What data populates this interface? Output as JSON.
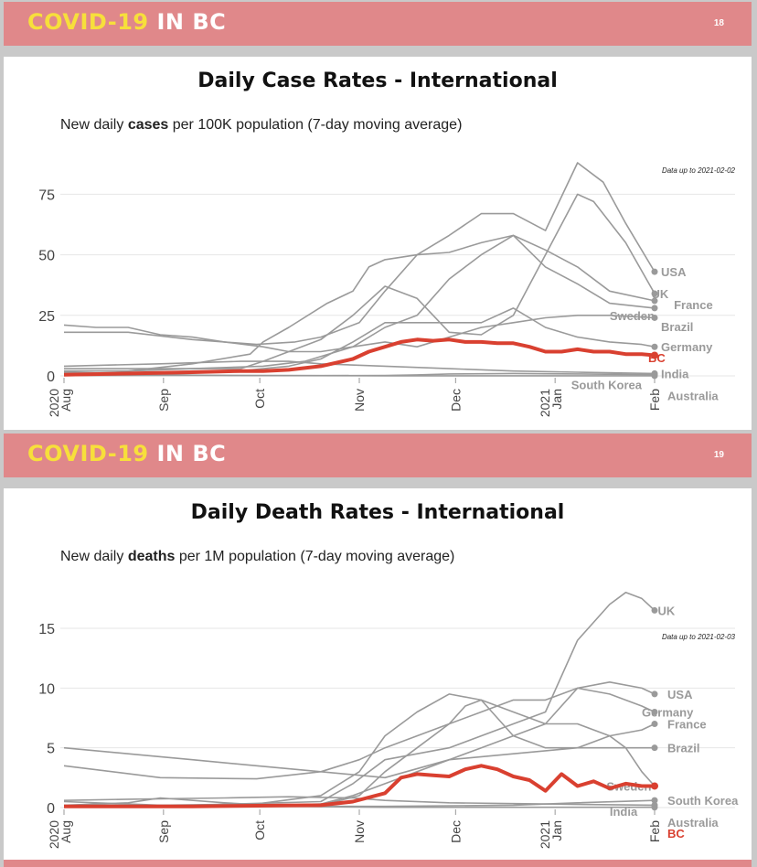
{
  "slides": [
    {
      "banner": {
        "brand_highlight": "COVID-19",
        "brand_rest": "IN BC",
        "page": "18"
      },
      "title": "Daily Case Rates - International",
      "subtitle_pre": "New daily ",
      "subtitle_bold": "cases",
      "subtitle_post": " per 100K population (7-day  moving average)",
      "note": "Data up to 2021-02-02"
    },
    {
      "banner": {
        "brand_highlight": "COVID-19",
        "brand_rest": "IN BC",
        "page": "19"
      },
      "title": "Daily Death Rates - International",
      "subtitle_pre": "New daily ",
      "subtitle_bold": "deaths",
      "subtitle_post": " per 1M population (7-day  moving average)",
      "note": "Data up to 2021-02-03"
    }
  ],
  "colors": {
    "banner": "#e0888a",
    "brand_highlight": "#f7df3b",
    "grey_series": "#9a9a9a",
    "bc": "#d94030"
  },
  "chart_data": [
    {
      "type": "line",
      "x_labels": [
        {
          "x": 0,
          "label": "2020 Aug"
        },
        {
          "x": 31,
          "label": "Sep"
        },
        {
          "x": 61,
          "label": "Oct"
        },
        {
          "x": 92,
          "label": "Nov"
        },
        {
          "x": 122,
          "label": "Dec"
        },
        {
          "x": 153,
          "label": "2021 Jan"
        },
        {
          "x": 184,
          "label": "Feb"
        }
      ],
      "xlim": [
        0,
        184
      ],
      "ylim": [
        0,
        88
      ],
      "yticks": [
        0,
        25,
        50,
        75
      ],
      "series": [
        {
          "name": "USA",
          "x": [
            0,
            20,
            40,
            60,
            72,
            80,
            92,
            100,
            110,
            120,
            130,
            140,
            150,
            160,
            168,
            175,
            184
          ],
          "y": [
            18,
            18,
            15,
            13,
            14,
            16,
            22,
            35,
            50,
            58,
            67,
            67,
            60,
            88,
            80,
            63,
            43
          ],
          "label_x": 186
        },
        {
          "name": "UK",
          "x": [
            0,
            20,
            40,
            55,
            62,
            70,
            80,
            90,
            100,
            110,
            120,
            130,
            140,
            150,
            160,
            165,
            175,
            184
          ],
          "y": [
            2,
            2,
            3,
            3,
            6,
            10,
            15,
            25,
            37,
            32,
            18,
            17,
            25,
            50,
            75,
            72,
            55,
            34
          ],
          "label_x": 183
        },
        {
          "name": "France",
          "x": [
            0,
            20,
            40,
            58,
            62,
            70,
            82,
            90,
            95,
            100,
            110,
            120,
            130,
            140,
            150,
            160,
            170,
            184
          ],
          "y": [
            2,
            2,
            5,
            9,
            14,
            20,
            30,
            35,
            45,
            48,
            50,
            51,
            55,
            58,
            52,
            45,
            35,
            31
          ],
          "label_x": 190
        },
        {
          "name": "Sweden",
          "x": [
            0,
            20,
            40,
            62,
            75,
            90,
            100,
            110,
            120,
            130,
            140,
            150,
            160,
            170,
            184
          ],
          "y": [
            3,
            3,
            3,
            4,
            6,
            12,
            20,
            25,
            40,
            50,
            58,
            45,
            38,
            30,
            28
          ],
          "label_x": 170
        },
        {
          "name": "Brazil",
          "x": [
            0,
            10,
            20,
            30,
            40,
            50,
            62,
            70,
            80,
            90,
            100,
            110,
            120,
            130,
            140,
            150,
            160,
            170,
            184
          ],
          "y": [
            21,
            20,
            20,
            17,
            16,
            14,
            12,
            10,
            10,
            12,
            14,
            12,
            16,
            20,
            22,
            24,
            25,
            25,
            24
          ],
          "label_x": 186
        },
        {
          "name": "Germany",
          "x": [
            0,
            20,
            40,
            55,
            62,
            70,
            80,
            90,
            100,
            110,
            120,
            130,
            140,
            150,
            160,
            170,
            180,
            184
          ],
          "y": [
            1,
            1,
            2,
            2,
            3,
            4,
            7,
            14,
            22,
            22,
            22,
            22,
            28,
            20,
            16,
            14,
            13,
            12
          ],
          "label_x": 186
        },
        {
          "name": "India",
          "x": [
            0,
            30,
            55,
            70,
            80,
            100,
            120,
            140,
            160,
            184
          ],
          "y": [
            4,
            5,
            6,
            6,
            5,
            4,
            3,
            2,
            1.5,
            1
          ],
          "label_x": 186
        },
        {
          "name": "South Korea",
          "x": [
            0,
            50,
            80,
            100,
            110,
            120,
            140,
            160,
            184
          ],
          "y": [
            0.1,
            0.2,
            0.1,
            0.2,
            0.4,
            0.8,
            1.0,
            0.8,
            0.5
          ],
          "label_x": 158
        },
        {
          "name": "Australia",
          "x": [
            0,
            10,
            20,
            40,
            60,
            100,
            184
          ],
          "y": [
            1.5,
            1.2,
            0.8,
            0.3,
            0.1,
            0.02,
            0.02
          ],
          "label_x": 188
        },
        {
          "name": "BC",
          "highlight": true,
          "x": [
            0,
            20,
            40,
            55,
            62,
            70,
            80,
            90,
            95,
            100,
            105,
            110,
            115,
            120,
            125,
            130,
            135,
            140,
            145,
            150,
            155,
            160,
            165,
            170,
            175,
            180,
            184
          ],
          "y": [
            0.5,
            1,
            1.5,
            2,
            2,
            2.5,
            4,
            7,
            10,
            12,
            14,
            15,
            14.5,
            15,
            14,
            14,
            13.5,
            13.5,
            12,
            10,
            10,
            11,
            10,
            10,
            9,
            9,
            8.5
          ],
          "label_x": 182
        }
      ]
    },
    {
      "type": "line",
      "x_labels": [
        {
          "x": 0,
          "label": "2020 Aug"
        },
        {
          "x": 31,
          "label": "Sep"
        },
        {
          "x": 61,
          "label": "Oct"
        },
        {
          "x": 92,
          "label": "Nov"
        },
        {
          "x": 122,
          "label": "Dec"
        },
        {
          "x": 153,
          "label": "2021 Jan"
        },
        {
          "x": 184,
          "label": "Feb"
        }
      ],
      "xlim": [
        0,
        184
      ],
      "ylim": [
        0,
        18.6
      ],
      "yticks": [
        0,
        5,
        10,
        15
      ],
      "series": [
        {
          "name": "UK",
          "x": [
            0,
            40,
            80,
            90,
            100,
            120,
            140,
            150,
            160,
            170,
            175,
            180,
            184
          ],
          "y": [
            0.2,
            0.2,
            0.5,
            2,
            4,
            5,
            7,
            8,
            14,
            17,
            18,
            17.5,
            16.5
          ],
          "label_x": 185
        },
        {
          "name": "USA",
          "x": [
            0,
            30,
            60,
            80,
            92,
            100,
            110,
            120,
            130,
            140,
            150,
            160,
            170,
            180,
            184
          ],
          "y": [
            3.5,
            2.5,
            2.4,
            3,
            4,
            5,
            6,
            7,
            8,
            9,
            9,
            10,
            10.5,
            10,
            9.5
          ],
          "label_x": 188
        },
        {
          "name": "Germany",
          "x": [
            0,
            50,
            80,
            90,
            100,
            110,
            120,
            130,
            140,
            150,
            160,
            170,
            180,
            184
          ],
          "y": [
            0.1,
            0.1,
            0.3,
            1,
            2,
            3,
            4,
            5,
            6,
            7,
            10,
            9.5,
            8.5,
            8
          ],
          "label_x": 180
        },
        {
          "name": "France",
          "x": [
            0,
            30,
            60,
            80,
            92,
            100,
            110,
            120,
            130,
            140,
            150,
            160,
            170,
            180,
            184
          ],
          "y": [
            0.5,
            0.2,
            0.3,
            1,
            3,
            6,
            8,
            9.5,
            9,
            6,
            5,
            5,
            6,
            6.5,
            7
          ],
          "label_x": 188
        },
        {
          "name": "Brazil",
          "x": [
            0,
            20,
            40,
            60,
            80,
            100,
            120,
            140,
            160,
            184
          ],
          "y": [
            5,
            4.5,
            4,
            3.5,
            3,
            2.5,
            4,
            4.5,
            5,
            5
          ],
          "label_x": 188
        },
        {
          "name": "Sweden",
          "x": [
            0,
            50,
            80,
            92,
            100,
            110,
            120,
            125,
            130,
            140,
            150,
            160,
            170,
            175,
            180,
            184
          ],
          "y": [
            0.2,
            0.1,
            0.2,
            1,
            3,
            5,
            7,
            8.5,
            9,
            8,
            7,
            7,
            6,
            5,
            3,
            1.8
          ],
          "label_x": 169
        },
        {
          "name": "South Korea",
          "x": [
            0,
            50,
            100,
            140,
            160,
            184
          ],
          "y": [
            0.1,
            0.1,
            0.1,
            0.2,
            0.4,
            0.6
          ],
          "label_x": 188
        },
        {
          "name": "India",
          "x": [
            0,
            20,
            50,
            70,
            90,
            100,
            120,
            150,
            184
          ],
          "y": [
            0.6,
            0.7,
            0.8,
            0.9,
            0.8,
            0.6,
            0.4,
            0.3,
            0.2
          ],
          "label_x": 170
        },
        {
          "name": "Australia",
          "x": [
            0,
            20,
            30,
            50,
            70,
            100,
            184
          ],
          "y": [
            0.2,
            0.4,
            0.8,
            0.4,
            0.1,
            0.02,
            0.02
          ],
          "label_x": 188
        },
        {
          "name": "BC",
          "highlight": true,
          "x": [
            0,
            20,
            40,
            60,
            80,
            90,
            100,
            105,
            110,
            115,
            120,
            125,
            130,
            135,
            140,
            145,
            150,
            155,
            160,
            165,
            170,
            175,
            180,
            184
          ],
          "y": [
            0.1,
            0.1,
            0.1,
            0.15,
            0.2,
            0.5,
            1.2,
            2.5,
            2.8,
            2.7,
            2.6,
            3.2,
            3.5,
            3.2,
            2.6,
            2.3,
            1.4,
            2.8,
            1.8,
            2.2,
            1.6,
            2,
            1.8,
            1.8
          ],
          "label_x": 188
        }
      ]
    }
  ]
}
